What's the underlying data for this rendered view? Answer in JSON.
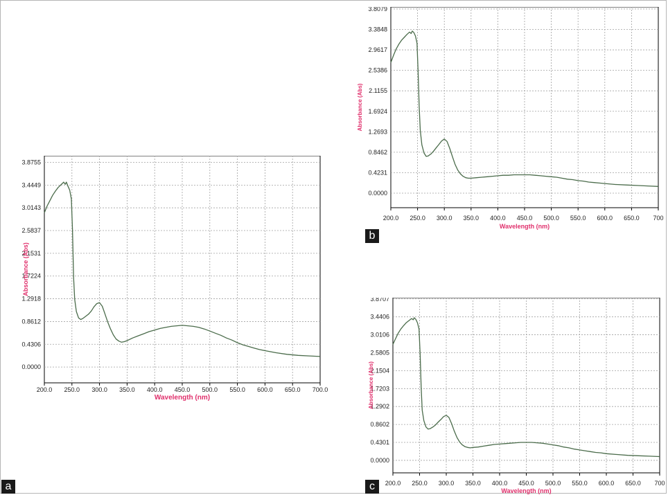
{
  "chart_data": [
    {
      "panel": "a",
      "type": "line",
      "xlabel": "Wavelength (nm)",
      "ylabel": "Absorbance (Abs)",
      "xlim": [
        200,
        700
      ],
      "ylim": [
        -0.3,
        4.0
      ],
      "grid": true,
      "line_color": "#4a6b4a",
      "x_tick_labels": [
        "200.0",
        "250.0",
        "300.0",
        "350.0",
        "400.0",
        "450.0",
        "500.0",
        "550.0",
        "600.0",
        "650.0",
        "700.0"
      ],
      "y_tick_labels": [
        "0.0000",
        "0.4306",
        "0.8612",
        "1.2918",
        "1.7224",
        "2.1531",
        "2.5837",
        "3.0143",
        "3.4449",
        "3.8755"
      ],
      "series": [
        {
          "x": [
            200,
            205,
            210,
            215,
            220,
            225,
            230,
            235,
            238,
            240,
            243,
            246,
            249,
            251,
            253,
            255,
            258,
            262,
            266,
            270,
            275,
            280,
            285,
            290,
            295,
            300,
            305,
            310,
            315,
            320,
            325,
            330,
            335,
            340,
            345,
            350,
            360,
            370,
            380,
            390,
            400,
            410,
            420,
            430,
            440,
            450,
            460,
            470,
            480,
            490,
            500,
            510,
            520,
            530,
            540,
            550,
            560,
            570,
            580,
            590,
            600,
            620,
            640,
            660,
            680,
            700
          ],
          "y": [
            2.92,
            3.05,
            3.15,
            3.25,
            3.33,
            3.4,
            3.45,
            3.5,
            3.46,
            3.5,
            3.42,
            3.35,
            3.18,
            2.6,
            1.7,
            1.28,
            1.05,
            0.93,
            0.9,
            0.92,
            0.96,
            1.0,
            1.06,
            1.14,
            1.2,
            1.22,
            1.15,
            1.0,
            0.85,
            0.72,
            0.61,
            0.53,
            0.49,
            0.47,
            0.48,
            0.5,
            0.55,
            0.59,
            0.63,
            0.67,
            0.7,
            0.73,
            0.75,
            0.77,
            0.78,
            0.79,
            0.78,
            0.77,
            0.75,
            0.72,
            0.68,
            0.64,
            0.6,
            0.55,
            0.51,
            0.46,
            0.42,
            0.39,
            0.36,
            0.33,
            0.31,
            0.27,
            0.24,
            0.22,
            0.21,
            0.2
          ]
        }
      ]
    },
    {
      "panel": "b",
      "type": "line",
      "xlabel": "Wavelength (nm)",
      "ylabel": "Absorbance (Abs)",
      "xlim": [
        200,
        700
      ],
      "ylim": [
        -0.3,
        3.85
      ],
      "grid": true,
      "line_color": "#4a6b4a",
      "x_tick_labels": [
        "200.0",
        "250.0",
        "300.0",
        "350.0",
        "400.0",
        "450.0",
        "500.0",
        "550.0",
        "600.0",
        "650.0",
        "700"
      ],
      "y_tick_labels": [
        "0.0000",
        "0.4231",
        "0.8462",
        "1.2693",
        "1.6924",
        "2.1155",
        "2.5386",
        "2.9617",
        "3.3848",
        "3.8079"
      ],
      "series": [
        {
          "x": [
            200,
            205,
            210,
            215,
            220,
            225,
            230,
            235,
            238,
            240,
            243,
            246,
            249,
            251,
            253,
            255,
            258,
            262,
            266,
            270,
            275,
            280,
            285,
            290,
            295,
            300,
            305,
            310,
            315,
            320,
            325,
            330,
            335,
            340,
            345,
            350,
            360,
            370,
            380,
            390,
            400,
            410,
            420,
            430,
            440,
            450,
            460,
            470,
            480,
            490,
            500,
            510,
            520,
            530,
            540,
            550,
            560,
            570,
            580,
            590,
            600,
            620,
            640,
            660,
            680,
            700
          ],
          "y": [
            2.7,
            2.85,
            2.98,
            3.08,
            3.16,
            3.22,
            3.28,
            3.33,
            3.3,
            3.35,
            3.32,
            3.25,
            3.1,
            2.5,
            1.8,
            1.3,
            1.0,
            0.83,
            0.76,
            0.77,
            0.81,
            0.87,
            0.94,
            1.01,
            1.08,
            1.12,
            1.07,
            0.93,
            0.76,
            0.6,
            0.48,
            0.4,
            0.35,
            0.32,
            0.31,
            0.31,
            0.32,
            0.33,
            0.34,
            0.35,
            0.36,
            0.37,
            0.37,
            0.38,
            0.38,
            0.38,
            0.38,
            0.37,
            0.36,
            0.35,
            0.34,
            0.33,
            0.31,
            0.29,
            0.28,
            0.26,
            0.25,
            0.23,
            0.22,
            0.21,
            0.2,
            0.18,
            0.17,
            0.16,
            0.15,
            0.14
          ]
        }
      ]
    },
    {
      "panel": "c",
      "type": "line",
      "xlabel": "Wavelength (nm)",
      "ylabel": "Absorbance (Abs)",
      "xlim": [
        200,
        700
      ],
      "ylim": [
        -0.3,
        3.9
      ],
      "grid": true,
      "line_color": "#4a6b4a",
      "x_tick_labels": [
        "200.0",
        "250.0",
        "300.0",
        "350.0",
        "400.0",
        "450.0",
        "500.0",
        "550.0",
        "600.0",
        "650.0",
        "700"
      ],
      "y_tick_labels": [
        "0.0000",
        "0.4301",
        "0.8602",
        "1.2902",
        "1.7203",
        "2.1504",
        "2.5805",
        "3.0106",
        "3.4406",
        "3.8707"
      ],
      "series": [
        {
          "x": [
            200,
            205,
            210,
            215,
            220,
            225,
            230,
            235,
            238,
            240,
            243,
            246,
            249,
            251,
            253,
            255,
            258,
            262,
            266,
            270,
            275,
            280,
            285,
            290,
            295,
            300,
            305,
            310,
            315,
            320,
            325,
            330,
            335,
            340,
            345,
            350,
            360,
            370,
            380,
            390,
            400,
            410,
            420,
            430,
            440,
            450,
            460,
            470,
            480,
            490,
            500,
            510,
            520,
            530,
            540,
            550,
            560,
            570,
            580,
            590,
            600,
            620,
            640,
            660,
            680,
            700
          ],
          "y": [
            2.78,
            2.92,
            3.05,
            3.15,
            3.23,
            3.3,
            3.35,
            3.4,
            3.37,
            3.42,
            3.38,
            3.3,
            3.15,
            2.55,
            1.75,
            1.2,
            0.95,
            0.8,
            0.75,
            0.76,
            0.8,
            0.85,
            0.92,
            0.98,
            1.05,
            1.08,
            1.03,
            0.88,
            0.7,
            0.55,
            0.44,
            0.37,
            0.33,
            0.31,
            0.3,
            0.31,
            0.32,
            0.34,
            0.36,
            0.38,
            0.39,
            0.4,
            0.41,
            0.42,
            0.43,
            0.43,
            0.43,
            0.42,
            0.41,
            0.39,
            0.37,
            0.35,
            0.32,
            0.3,
            0.27,
            0.25,
            0.23,
            0.21,
            0.19,
            0.18,
            0.16,
            0.14,
            0.12,
            0.11,
            0.1,
            0.09
          ]
        }
      ]
    }
  ],
  "panel_labels": {
    "a": "a",
    "b": "b",
    "c": "c"
  }
}
